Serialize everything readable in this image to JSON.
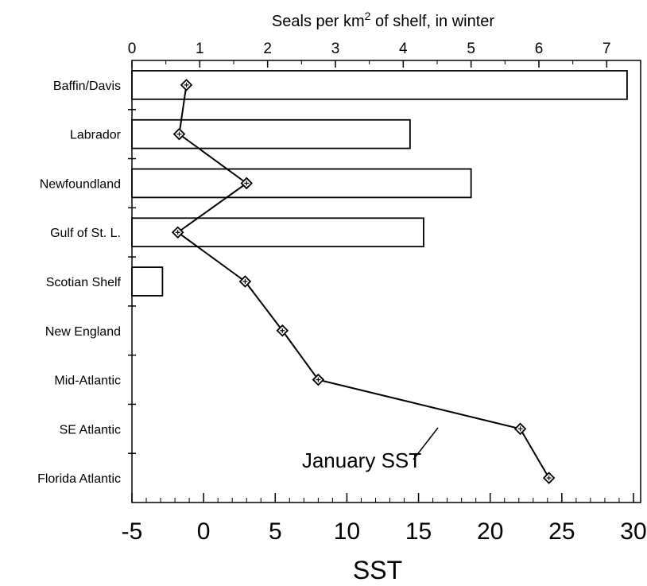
{
  "chart_data": {
    "type": "bar",
    "orientation": "horizontal",
    "categories": [
      "Baffin/Davis",
      "Labrador",
      "Newfoundland",
      "Gulf of St. L.",
      "Scotian Shelf",
      "New England",
      "Mid-Atlantic",
      "SE Atlantic",
      "Florida Atlantic"
    ],
    "top_axis": {
      "title_prefix": "Seals per km",
      "title_sup": "2",
      "title_suffix": " of shelf, in winter",
      "range": [
        0,
        7.5
      ],
      "ticks": [
        "0",
        "1",
        "2",
        "3",
        "4",
        "5",
        "6",
        "7"
      ]
    },
    "bottom_axis": {
      "label": "SST",
      "range": [
        -5,
        30.5
      ],
      "ticks": [
        "-5",
        "0",
        "5",
        "10",
        "15",
        "20",
        "25",
        "30"
      ]
    },
    "series": [
      {
        "axis": "top",
        "values": [
          7.3,
          4.1,
          5.0,
          4.3,
          0.45,
          0,
          0,
          0,
          0
        ]
      },
      {
        "name": "January SST",
        "axis": "bottom",
        "type": "line",
        "values": [
          -1.2,
          -1.7,
          3.0,
          -1.8,
          2.9,
          5.5,
          8.0,
          22.1,
          24.1
        ]
      }
    ],
    "annotation": "January SST",
    "grid": false
  }
}
